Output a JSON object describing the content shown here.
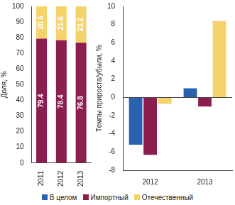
{
  "chart_data": [
    {
      "type": "bar",
      "stacked": true,
      "data_labels": true,
      "grid": false,
      "y_label": "Доля, %",
      "categories": [
        "2011",
        "2012",
        "2013"
      ],
      "series": [
        {
          "name": "Импортный",
          "color": "#8c1d4f",
          "values": [
            79.4,
            78.4,
            76.8
          ]
        },
        {
          "name": "Отечественный",
          "color": "#f5d36b",
          "values": [
            20.6,
            21.6,
            23.2
          ]
        }
      ],
      "ylim": [
        0,
        100
      ],
      "yticks": [
        0,
        10,
        20,
        30,
        40,
        50,
        60,
        70,
        80,
        90,
        100
      ]
    },
    {
      "type": "bar",
      "grid": false,
      "legend": "bottom",
      "y_label": "Темпы прироста/убыли, %",
      "categories": [
        "2012",
        "2013"
      ],
      "series": [
        {
          "name": "В целом",
          "color": "#2a62b0",
          "values": [
            -5.2,
            1.0
          ]
        },
        {
          "name": "Импортный",
          "color": "#8c1d4f",
          "values": [
            -6.3,
            -1.0
          ]
        },
        {
          "name": "Отечественный",
          "color": "#f5d36b",
          "values": [
            -0.7,
            8.4
          ]
        }
      ],
      "ylim": [
        -8,
        10
      ],
      "yticks": [
        -8,
        -6,
        -4,
        -2,
        0,
        2,
        4,
        6,
        8,
        10
      ]
    }
  ]
}
